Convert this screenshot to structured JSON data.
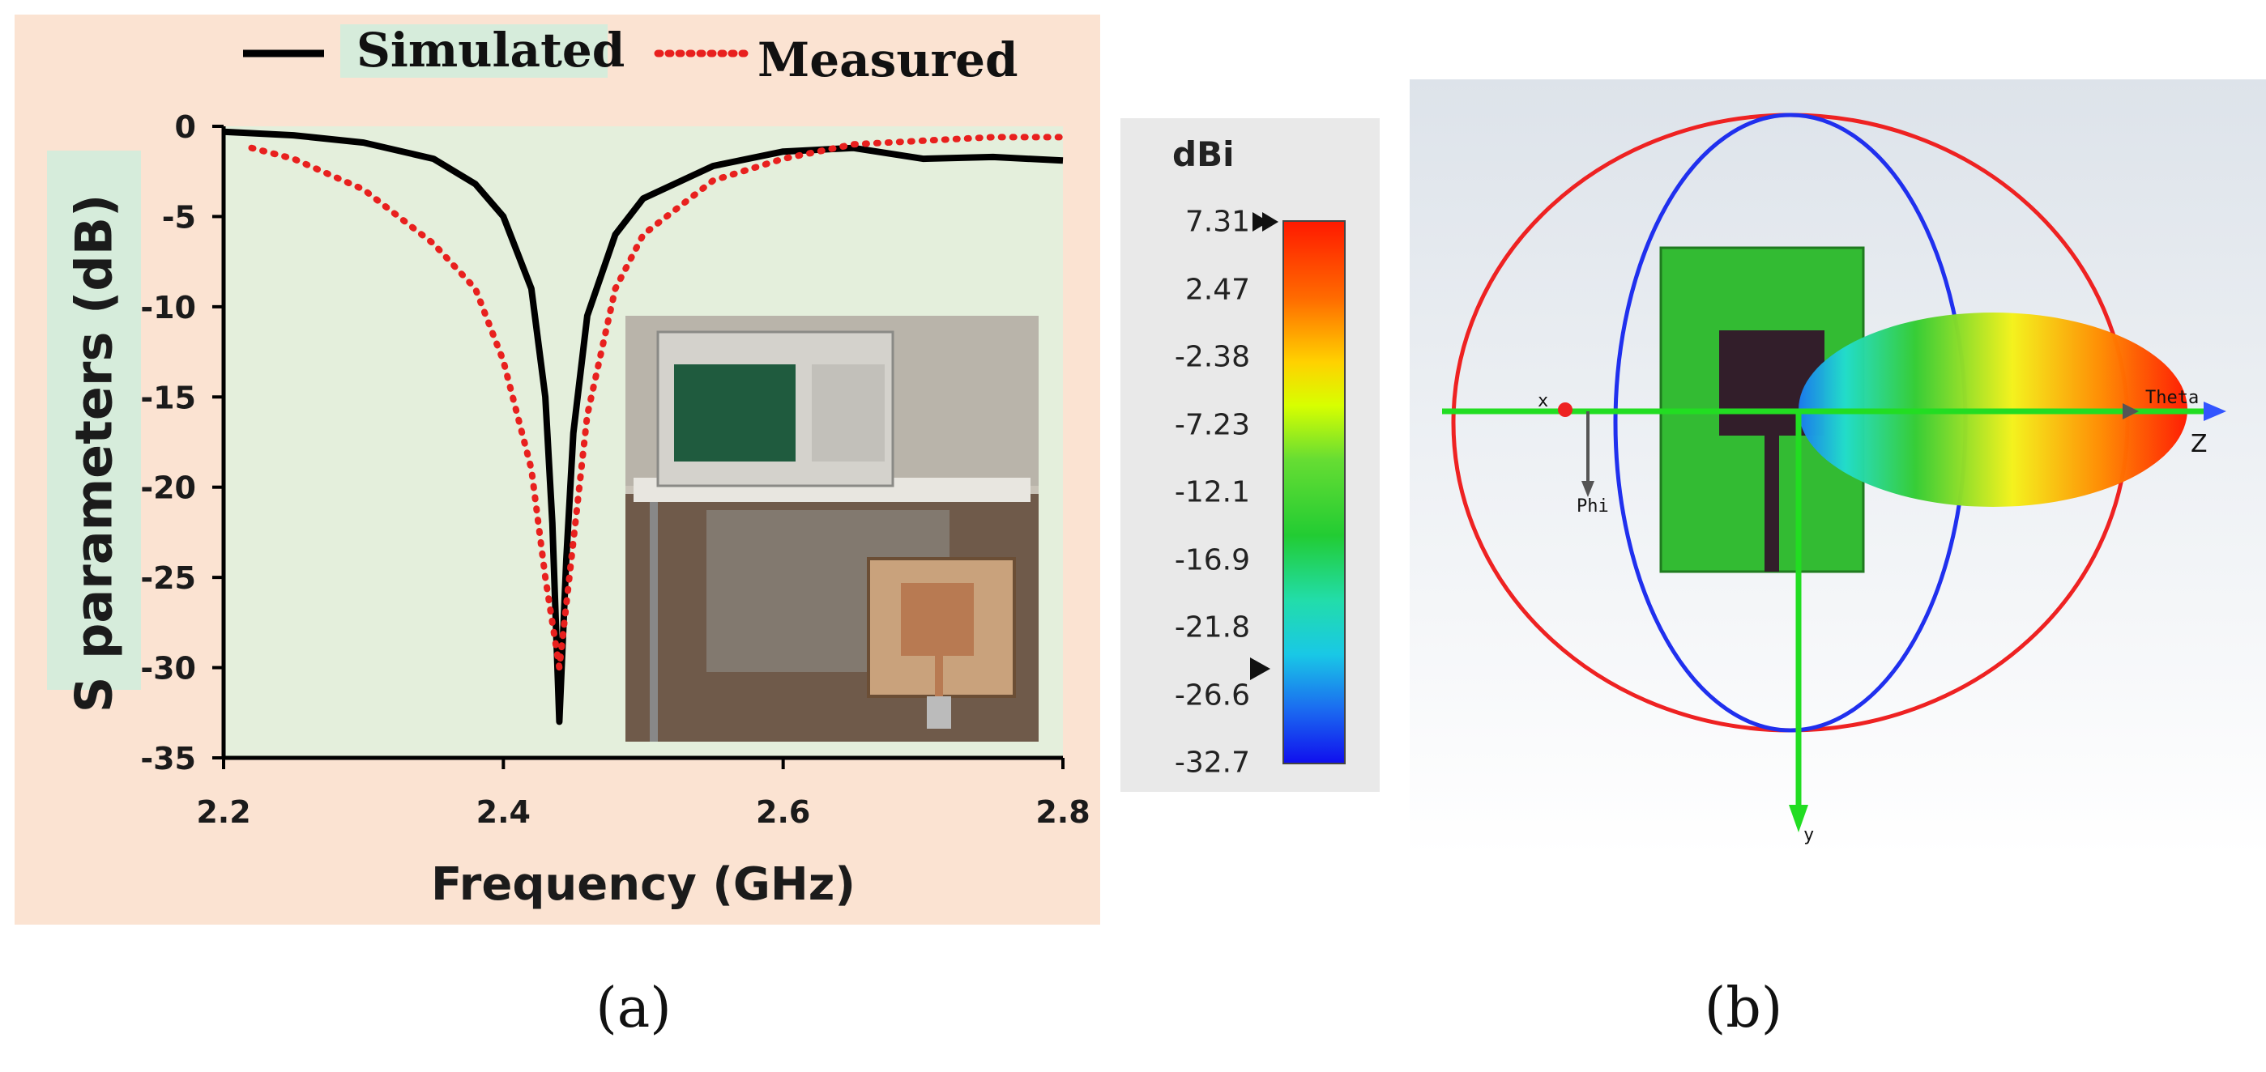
{
  "chart_data": [
    {
      "type": "line",
      "panel": "(a)",
      "xlabel": "Frequency (GHz)",
      "ylabel": "S parameters (dB)",
      "xlim": [
        2.2,
        2.8
      ],
      "ylim": [
        -35,
        0
      ],
      "xticks": [
        "2.2",
        "2.4",
        "2.6",
        "2.8"
      ],
      "yticks": [
        "0",
        "-5",
        "-10",
        "-15",
        "-20",
        "-25",
        "-30",
        "-35"
      ],
      "grid": false,
      "legend_position": "top",
      "series": [
        {
          "name": "Simulated",
          "color": "#000000",
          "style": "solid",
          "x": [
            2.2,
            2.25,
            2.3,
            2.35,
            2.38,
            2.4,
            2.42,
            2.43,
            2.435,
            2.44,
            2.445,
            2.45,
            2.46,
            2.48,
            2.5,
            2.55,
            2.6,
            2.65,
            2.7,
            2.75,
            2.8
          ],
          "y": [
            -0.3,
            -0.5,
            -0.9,
            -1.8,
            -3.2,
            -5.0,
            -9.0,
            -15.0,
            -22.0,
            -33.0,
            -24.0,
            -17.0,
            -10.5,
            -6.0,
            -4.0,
            -2.2,
            -1.4,
            -1.2,
            -1.8,
            -1.7,
            -1.9
          ]
        },
        {
          "name": "Measured",
          "color": "#e8201e",
          "style": "dotted",
          "x": [
            2.22,
            2.25,
            2.3,
            2.35,
            2.38,
            2.4,
            2.42,
            2.43,
            2.44,
            2.45,
            2.46,
            2.48,
            2.5,
            2.55,
            2.6,
            2.65,
            2.7,
            2.75,
            2.8
          ],
          "y": [
            -1.2,
            -1.8,
            -3.5,
            -6.5,
            -9.0,
            -13.0,
            -19.0,
            -25.0,
            -30.0,
            -23.0,
            -16.0,
            -9.0,
            -6.0,
            -3.0,
            -1.8,
            -1.0,
            -0.8,
            -0.6,
            -0.6
          ]
        }
      ]
    },
    {
      "type": "heatmap",
      "panel": "(b)",
      "colorbar_unit": "dBi",
      "colorbar_ticks": [
        "7.31",
        "2.47",
        "-2.38",
        "-7.23",
        "-12.1",
        "-16.9",
        "-21.8",
        "-26.6",
        "-32.7"
      ],
      "colorbar_range": [
        -32.7,
        7.31
      ],
      "axes_labels": [
        "x",
        "Phi",
        "Theta",
        "Z",
        "y"
      ]
    }
  ],
  "captions": {
    "a": "(a)",
    "b": "(b)"
  },
  "colors": {
    "panel_bg": "#fbe3d2",
    "plot_bg": "#e4efdc",
    "label_highlight": "#d6ecdb",
    "simulated": "#000000",
    "measured": "#e8201e"
  }
}
